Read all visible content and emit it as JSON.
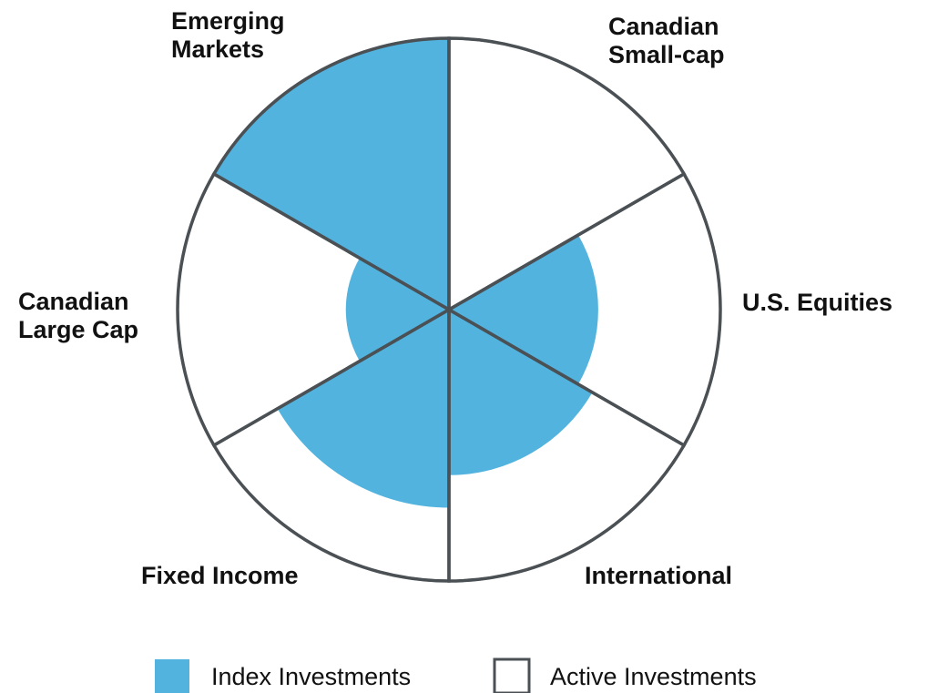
{
  "chart_data": {
    "type": "polar",
    "categories": [
      "Canadian Small-cap",
      "U.S. Equities",
      "International",
      "Fixed Income",
      "Canadian Large Cap",
      "Emerging Markets"
    ],
    "series": [
      {
        "name": "Index Investments",
        "color": "#52b3de",
        "values": [
          0,
          55,
          61,
          73,
          38,
          100
        ]
      },
      {
        "name": "Active Investments",
        "color": "#ffffff",
        "values": [
          100,
          100,
          100,
          100,
          100,
          100
        ]
      }
    ],
    "rlim": [
      0,
      100
    ]
  }
}
